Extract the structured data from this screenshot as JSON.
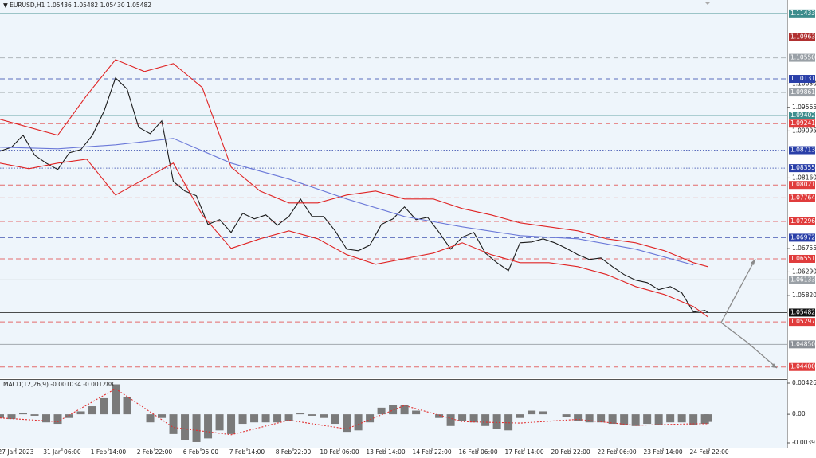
{
  "header": "▼ EURUSD,H1  1.05436 1.05482 1.05430 1.05482",
  "chart_data": [
    {
      "type": "line",
      "xlim": [
        0,
        545
      ],
      "ylim": [
        1.0419,
        1.117
      ],
      "yticks": [
        {
          "value": 1.1003,
          "label": "1.10030"
        },
        1.09565,
        1.09095,
        {
          "value": 1.0816,
          "label": "1.08160"
        },
        1.06755,
        {
          "value": 1.0629,
          "label": "1.06290"
        },
        {
          "value": 1.0582,
          "label": "1.05820"
        }
      ],
      "series": [
        {
          "color": "#1a1a1a",
          "x": [
            0,
            8,
            16,
            24,
            32,
            40,
            48,
            56,
            64,
            72,
            80,
            88,
            96,
            104,
            112,
            120,
            128,
            136,
            144,
            152,
            160,
            168,
            176,
            184,
            192,
            200,
            208,
            216,
            224,
            232,
            240,
            248,
            256,
            264,
            272,
            280,
            288,
            296,
            304,
            312,
            320,
            328,
            336,
            344,
            352,
            360,
            368,
            376,
            384,
            392,
            400,
            408,
            416,
            424,
            432,
            440,
            448,
            456,
            464,
            472,
            480,
            488,
            490
          ],
          "values": [
            1.08693,
            1.08772,
            1.0901,
            1.08613,
            1.08455,
            1.08328,
            1.08661,
            1.08724,
            1.0901,
            1.09485,
            1.1015,
            1.09928,
            1.09168,
            1.09041,
            1.09295,
            1.08091,
            1.07901,
            1.07806,
            1.07235,
            1.0733,
            1.07077,
            1.07457,
            1.07346,
            1.07426,
            1.0722,
            1.07394,
            1.07742,
            1.07394,
            1.07394,
            1.07109,
            1.06744,
            1.06713,
            1.06824,
            1.07235,
            1.07346,
            1.07584,
            1.0733,
            1.07378,
            1.07077,
            1.06744,
            1.06982,
            1.07077,
            1.06665,
            1.06475,
            1.06317,
            1.06871,
            1.06887,
            1.0695,
            1.06871,
            1.0676,
            1.06634,
            1.06538,
            1.0657,
            1.06396,
            1.06238,
            1.06127,
            1.06079,
            1.05937,
            1.06,
            1.05873,
            1.05493,
            1.05525,
            1.05482
          ]
        },
        {
          "color": "#e02424",
          "x": [
            0,
            20,
            40,
            60,
            80,
            100,
            120,
            140,
            160,
            180,
            200,
            220,
            240,
            260,
            280,
            300,
            320,
            340,
            360,
            380,
            400,
            420,
            440,
            460,
            480,
            490
          ],
          "values": [
            1.09326,
            1.09168,
            1.0901,
            1.09802,
            1.10514,
            1.10277,
            1.10435,
            1.0996,
            1.08376,
            1.07901,
            1.07663,
            1.07663,
            1.07822,
            1.07901,
            1.07742,
            1.07742,
            1.07552,
            1.07426,
            1.07267,
            1.07188,
            1.07109,
            1.0695,
            1.06871,
            1.06713,
            1.06475,
            1.06396
          ]
        },
        {
          "color": "#e02424",
          "x": [
            0,
            20,
            40,
            60,
            80,
            100,
            120,
            140,
            160,
            180,
            200,
            220,
            240,
            260,
            280,
            300,
            320,
            340,
            360,
            380,
            400,
            420,
            440,
            460,
            480,
            490
          ],
          "values": [
            1.08455,
            1.08344,
            1.08455,
            1.08534,
            1.07822,
            1.08138,
            1.08455,
            1.07426,
            1.0676,
            1.0695,
            1.07109,
            1.0695,
            1.06634,
            1.06443,
            1.06554,
            1.06665,
            1.06871,
            1.06634,
            1.06475,
            1.06475,
            1.06396,
            1.06238,
            1.06,
            1.05841,
            1.05604,
            1.05398
          ]
        },
        {
          "color": "#6a78d8",
          "x": [
            0,
            40,
            80,
            120,
            160,
            200,
            240,
            280,
            320,
            360,
            400,
            440,
            480
          ],
          "values": [
            1.08772,
            1.0874,
            1.08819,
            1.08946,
            1.08455,
            1.08138,
            1.07742,
            1.07394,
            1.07188,
            1.07014,
            1.0695,
            1.06744,
            1.06428
          ]
        }
      ],
      "levels": [
        {
          "value": 1.11433,
          "color": "#3d8d8d",
          "style": "solid"
        },
        {
          "value": 1.10963,
          "color": "#b03030",
          "style": "dashed"
        },
        {
          "value": 1.1055,
          "label": "1.10550",
          "color": "#9aa0a6",
          "style": "dashed"
        },
        {
          "value": 1.10131,
          "color": "#2a3fa8",
          "style": "dashed"
        },
        {
          "value": 1.09861,
          "color": "#9aa0a6",
          "style": "dashed"
        },
        {
          "value": 1.09402,
          "color": "#3d8d8d",
          "style": "solid"
        },
        {
          "value": 1.09241,
          "color": "#e03c3c",
          "style": "dashed"
        },
        {
          "value": 1.08713,
          "color": "#2a3fa8",
          "style": "dotted"
        },
        {
          "value": 1.08355,
          "color": "#2a3fa8",
          "style": "dotted"
        },
        {
          "value": 1.08021,
          "color": "#e03c3c",
          "style": "dashed"
        },
        {
          "value": 1.07764,
          "color": "#e03c3c",
          "style": "dashed"
        },
        {
          "value": 1.07296,
          "color": "#e03c3c",
          "style": "dashed"
        },
        {
          "value": 1.06972,
          "color": "#2a3fa8",
          "style": "dashed"
        },
        {
          "value": 1.06551,
          "color": "#e03c3c",
          "style": "dashed"
        },
        {
          "value": 1.06133,
          "color": "#9aa0a6",
          "style": "solid"
        },
        {
          "value": 1.05482,
          "color": "#111111",
          "style": "solid"
        },
        {
          "value": 1.05297,
          "color": "#e03c3c",
          "style": "dashed"
        },
        {
          "value": 1.0485,
          "label": "1.04850",
          "color": "#8a8f96",
          "style": "solid"
        },
        {
          "value": 1.044,
          "label": "1.04400",
          "color": "#e03c3c",
          "style": "dashed"
        }
      ]
    },
    {
      "type": "bar",
      "title": "MACD(12,26,9)",
      "xlim": [
        0,
        545
      ],
      "ylim": [
        -0.004566,
        0.00481
      ],
      "yticks": [
        0.004265,
        {
          "value": 0,
          "label": "0.00"
        },
        -0.003912
      ],
      "xticks": [
        {
          "value": 11,
          "label": "27 Jan 2023"
        },
        {
          "value": 43,
          "label": "31 Jan 06:00"
        },
        {
          "value": 75,
          "label": "1 Feb 14:00"
        },
        {
          "value": 107,
          "label": "2 Feb 22:00"
        },
        {
          "value": 139,
          "label": "6 Feb 06:00"
        },
        {
          "value": 171,
          "label": "7 Feb 14:00"
        },
        {
          "value": 203,
          "label": "8 Feb 22:00"
        },
        {
          "value": 235,
          "label": "10 Feb 06:00"
        },
        {
          "value": 267,
          "label": "13 Feb 14:00"
        },
        {
          "value": 299,
          "label": "14 Feb 22:00"
        },
        {
          "value": 331,
          "label": "16 Feb 06:00"
        },
        {
          "value": 363,
          "label": "17 Feb 14:00"
        },
        {
          "value": 395,
          "label": "20 Feb 22:00"
        },
        {
          "value": 427,
          "label": "22 Feb 06:00"
        },
        {
          "value": 459,
          "label": "23 Feb 14:00"
        },
        {
          "value": 491,
          "label": "24 Feb 22:00"
        }
      ],
      "series": [
        {
          "style": "bar",
          "color": "#7a7a7a",
          "x": [
            0,
            8,
            16,
            24,
            32,
            40,
            48,
            56,
            64,
            72,
            80,
            88,
            96,
            104,
            112,
            120,
            128,
            136,
            144,
            152,
            160,
            168,
            176,
            184,
            192,
            200,
            208,
            216,
            224,
            232,
            240,
            248,
            256,
            264,
            272,
            280,
            288,
            296,
            304,
            312,
            320,
            328,
            336,
            344,
            352,
            360,
            368,
            376,
            384,
            392,
            400,
            408,
            416,
            424,
            432,
            440,
            448,
            456,
            464,
            472,
            480,
            488,
            490
          ],
          "values": [
            -0.0005,
            -0.00065,
            0.0002,
            -0.0002,
            -0.0011,
            -0.0013,
            -0.0005,
            0.0004,
            0.0011,
            0.0022,
            0.0041,
            0.0024,
            0,
            -0.0011,
            -0.0005,
            -0.0027,
            -0.0035,
            -0.0038,
            -0.0033,
            -0.0022,
            -0.0027,
            -0.0013,
            -0.0011,
            -0.0011,
            -0.0011,
            -0.0009,
            0.0002,
            -0.0002,
            -0.0005,
            -0.0013,
            -0.0024,
            -0.0022,
            -0.0011,
            0.0009,
            0.0013,
            0.0013,
            0.0005,
            0,
            -0.0005,
            -0.0016,
            -0.0009,
            -0.0011,
            -0.0016,
            -0.002,
            -0.0022,
            -0.0005,
            0.0005,
            0.0004,
            0,
            -0.0004,
            -0.0009,
            -0.0011,
            -0.0011,
            -0.0013,
            -0.0015,
            -0.0016,
            -0.0013,
            -0.0014,
            -0.0011,
            -0.0011,
            -0.0015,
            -0.0013,
            -0.001034
          ]
        },
        {
          "style": "line",
          "dashed": true,
          "color": "#e03030",
          "x": [
            0,
            40,
            80,
            120,
            160,
            200,
            240,
            280,
            320,
            360,
            400,
            440,
            480,
            490
          ],
          "values": [
            -0.0005,
            -0.001,
            0.0035,
            -0.0018,
            -0.0028,
            -0.0008,
            -0.002,
            0.0012,
            -0.001,
            -0.0012,
            -0.0007,
            -0.0015,
            -0.0013,
            -0.001288
          ]
        }
      ]
    }
  ]
}
